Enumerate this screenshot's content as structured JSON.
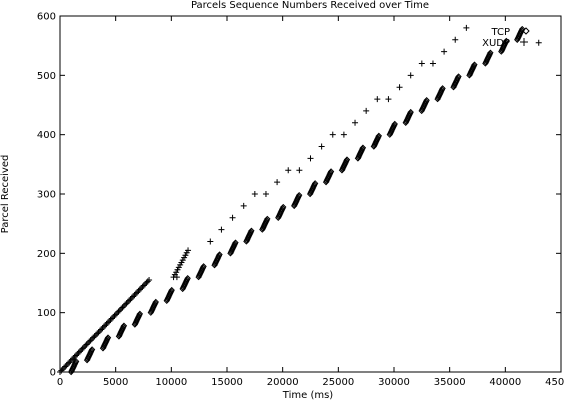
{
  "chart_data": {
    "type": "scatter",
    "title": "Parcels Sequence Numbers Received over Time",
    "xlabel": "Time (ms)",
    "ylabel": "Parcel Received",
    "xlim": [
      0,
      45000
    ],
    "ylim": [
      0,
      600
    ],
    "xticks": [
      0,
      5000,
      10000,
      15000,
      20000,
      25000,
      30000,
      35000,
      40000,
      45000
    ],
    "yticks": [
      0,
      100,
      200,
      300,
      400,
      500,
      600
    ],
    "grid": false,
    "legend_position": "top-right",
    "series": [
      {
        "name": "TCP",
        "marker": "diamond",
        "pattern": "staircase",
        "x_start": 1000,
        "x_end": 42500,
        "y_start": 0,
        "y_end": 580,
        "step_count": 29,
        "step_height": 20,
        "step_rise_ms": 500
      },
      {
        "name": "XUDP",
        "marker": "plus",
        "segments": [
          {
            "x": [
              0,
              8000
            ],
            "y": [
              0,
              155
            ]
          },
          {
            "x": [
              10200,
              11500
            ],
            "y": [
              160,
              205
            ]
          }
        ],
        "points": [
          {
            "x": 10500,
            "y": 160
          },
          {
            "x": 13500,
            "y": 220
          },
          {
            "x": 14500,
            "y": 240
          },
          {
            "x": 15500,
            "y": 260
          },
          {
            "x": 16500,
            "y": 280
          },
          {
            "x": 17500,
            "y": 300
          },
          {
            "x": 18500,
            "y": 300
          },
          {
            "x": 19500,
            "y": 320
          },
          {
            "x": 20500,
            "y": 340
          },
          {
            "x": 21500,
            "y": 340
          },
          {
            "x": 22500,
            "y": 360
          },
          {
            "x": 23500,
            "y": 380
          },
          {
            "x": 24500,
            "y": 400
          },
          {
            "x": 25500,
            "y": 400
          },
          {
            "x": 26500,
            "y": 420
          },
          {
            "x": 27500,
            "y": 440
          },
          {
            "x": 28500,
            "y": 460
          },
          {
            "x": 29500,
            "y": 460
          },
          {
            "x": 30500,
            "y": 480
          },
          {
            "x": 31500,
            "y": 500
          },
          {
            "x": 32500,
            "y": 520
          },
          {
            "x": 33500,
            "y": 520
          },
          {
            "x": 34500,
            "y": 540
          },
          {
            "x": 35500,
            "y": 560
          },
          {
            "x": 36500,
            "y": 580
          },
          {
            "x": 43000,
            "y": 555
          }
        ]
      }
    ]
  }
}
